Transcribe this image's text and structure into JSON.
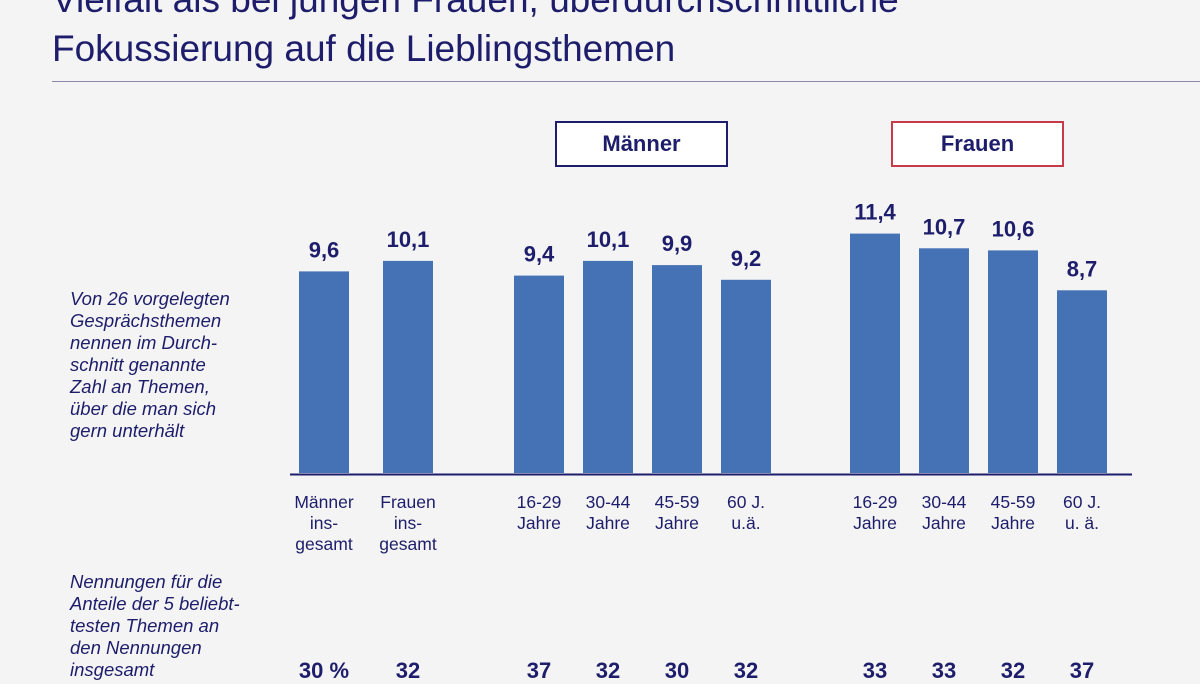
{
  "header": {
    "title_line_1": "Vielfalt als bei jungen Frauen, überdurchschnittliche",
    "title_line_2": "Fokussierung auf die Lieblingsthemen"
  },
  "groups": {
    "men": "Männer",
    "women": "Frauen"
  },
  "notes": {
    "average": "Von 26 vorgelegten\nGesprächsthemen\nnennen im Durch-\nschnitt genannte\nZahl an Themen,\nüber die man sich\ngern unterhält",
    "top5": "Nennungen für die\nAnteile der 5 beliebt-\ntesten Themen an\nden Nennungen\ninsgesamt"
  },
  "colors": {
    "bar": "#4472b4",
    "text": "#1d1d6b",
    "men_border": "#1d1d6b",
    "women_border": "#c73a4a"
  },
  "chart_data": {
    "type": "bar",
    "title": "",
    "ylabel": "Durchschnittlich genannte Zahl an Themen",
    "ylim": [
      0,
      12
    ],
    "categories": [
      "Männer\nins-\ngesamt",
      "Frauen\nins-\ngesamt",
      "16-29\nJahre",
      "30-44\nJahre",
      "45-59\nJahre",
      "60 J.\nu.ä.",
      "16-29\nJahre",
      "30-44\nJahre",
      "45-59\nJahre",
      "60 J.\nu. ä."
    ],
    "values": [
      9.6,
      10.1,
      9.4,
      10.1,
      9.9,
      9.2,
      11.4,
      10.7,
      10.6,
      8.7
    ],
    "value_labels": [
      "9,6",
      "10,1",
      "9,4",
      "10,1",
      "9,9",
      "9,2",
      "11,4",
      "10,7",
      "10,6",
      "8,7"
    ],
    "top5_share": [
      "30 %",
      "32",
      "37",
      "32",
      "30",
      "32",
      "33",
      "33",
      "32",
      "37"
    ]
  }
}
